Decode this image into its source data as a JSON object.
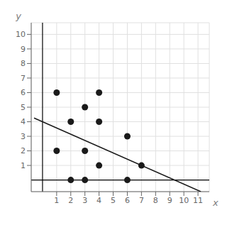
{
  "chart_data": {
    "type": "scatter",
    "xlabel": "x",
    "ylabel": "y",
    "xlim": [
      -0.8,
      11.8
    ],
    "ylim": [
      -0.8,
      10.8
    ],
    "xticks": [
      1,
      2,
      3,
      4,
      5,
      6,
      7,
      8,
      9,
      10,
      11
    ],
    "yticks": [
      1,
      2,
      3,
      4,
      5,
      6,
      7,
      8,
      9,
      10
    ],
    "grid": true,
    "series": [
      {
        "type": "scatter",
        "color": "#1a1a1a",
        "x": [
          1,
          1,
          2,
          2,
          3,
          3,
          3,
          4,
          4,
          4,
          6,
          6,
          7
        ],
        "values": [
          6,
          2,
          0,
          4,
          5,
          2,
          0,
          6,
          4,
          1,
          3,
          0,
          1
        ]
      },
      {
        "type": "line",
        "color": "#1a1a1a",
        "x": [
          -0.6,
          11.2
        ],
        "values": [
          4.257142,
          -0.799984
        ]
      }
    ]
  }
}
